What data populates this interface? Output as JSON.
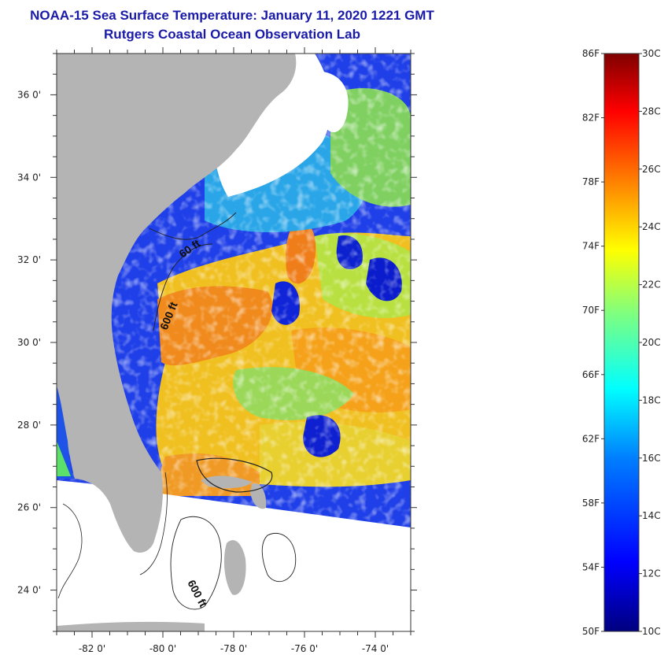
{
  "header": {
    "title": "NOAA-15 Sea Surface Temperature:  January 11, 2020 1221 GMT",
    "subtitle": "Rutgers Coastal Ocean Observation Lab"
  },
  "map": {
    "lon_range": [
      -83,
      -73
    ],
    "lat_range": [
      23,
      37
    ],
    "lon_ticks": [
      {
        "value": -82,
        "label": "-82 0'"
      },
      {
        "value": -80,
        "label": "-80 0'"
      },
      {
        "value": -78,
        "label": "-78 0'"
      },
      {
        "value": -76,
        "label": "-76 0'"
      },
      {
        "value": -74,
        "label": "-74 0'"
      }
    ],
    "lat_ticks": [
      {
        "value": 36,
        "label": "36 0'"
      },
      {
        "value": 34,
        "label": "34 0'"
      },
      {
        "value": 32,
        "label": "32 0'"
      },
      {
        "value": 30,
        "label": "30 0'"
      },
      {
        "value": 28,
        "label": "28 0'"
      },
      {
        "value": 26,
        "label": "26 0'"
      },
      {
        "value": 24,
        "label": "24 0'"
      }
    ],
    "contour_labels": [
      "600 ft",
      "60 ft",
      "600 ft"
    ],
    "land_color": "#b4b4b4",
    "cloud_color": "#ffffff"
  },
  "colorbar": {
    "fahrenheit_labels": [
      "86F",
      "82F",
      "78F",
      "74F",
      "70F",
      "66F",
      "62F",
      "58F",
      "54F",
      "50F"
    ],
    "celsius_labels": [
      "30C",
      "28C",
      "26C",
      "24C",
      "22C",
      "20C",
      "18C",
      "16C",
      "14C",
      "12C",
      "10C"
    ],
    "colors": [
      "#00007f",
      "#0000ff",
      "#007fff",
      "#00ffff",
      "#7fff7f",
      "#ffff00",
      "#ff7f00",
      "#ff0000",
      "#7f0000"
    ]
  }
}
